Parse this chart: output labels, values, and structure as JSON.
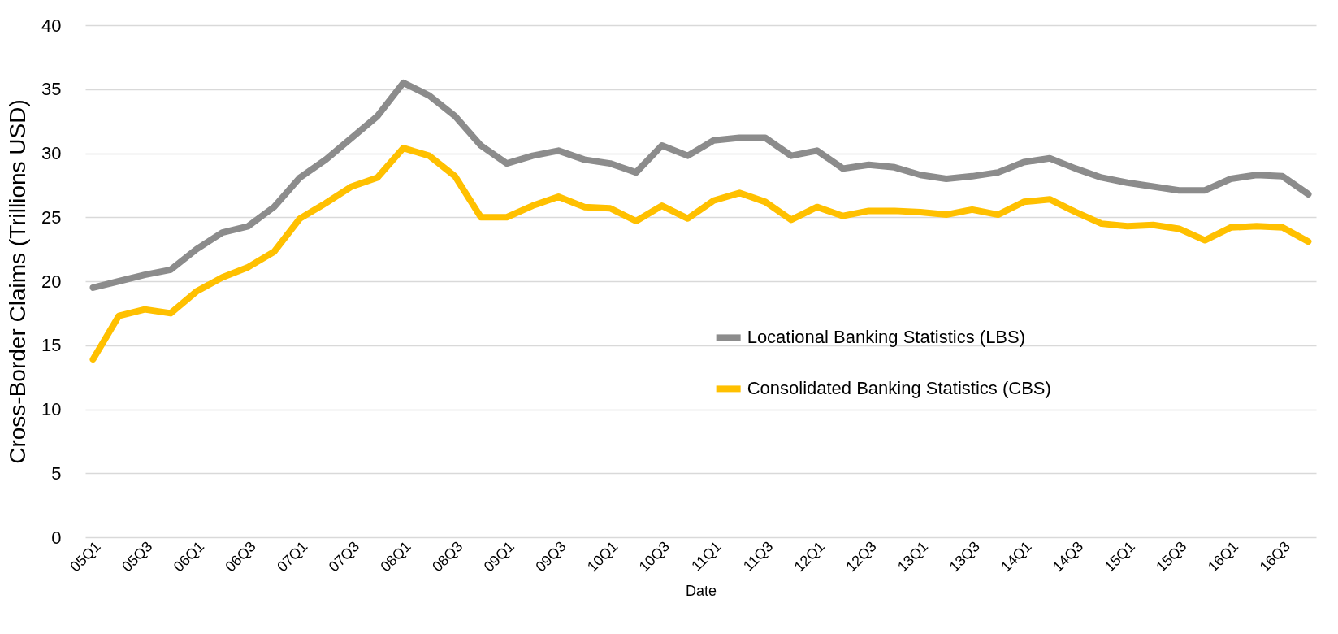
{
  "chart_data": {
    "type": "line",
    "xlabel": "Date",
    "ylabel": "Cross-Border Claims (Trillions USD)",
    "categories": [
      "05Q1",
      null,
      "05Q3",
      null,
      "06Q1",
      null,
      "06Q3",
      null,
      "07Q1",
      null,
      "07Q3",
      null,
      "08Q1",
      null,
      "08Q3",
      null,
      "09Q1",
      null,
      "09Q3",
      null,
      "10Q1",
      null,
      "10Q3",
      null,
      "11Q1",
      null,
      "11Q3",
      null,
      "12Q1",
      null,
      "12Q3",
      null,
      "13Q1",
      null,
      "13Q3",
      null,
      "14Q1",
      null,
      "14Q3",
      null,
      "15Q1",
      null,
      "15Q3",
      null,
      "16Q1",
      null,
      "16Q3",
      null
    ],
    "series": [
      {
        "name": "Locational Banking Statistics (LBS)",
        "color": "#8c8c8c",
        "values": [
          19.5,
          20.0,
          20.5,
          20.9,
          22.5,
          23.8,
          24.3,
          25.8,
          28.1,
          29.5,
          31.2,
          32.9,
          35.5,
          34.5,
          32.9,
          30.6,
          29.2,
          29.8,
          30.2,
          29.5,
          29.2,
          28.5,
          30.6,
          29.8,
          31.0,
          31.2,
          31.2,
          29.8,
          30.2,
          28.8,
          29.1,
          28.9,
          28.3,
          28.0,
          28.2,
          28.5,
          29.3,
          29.6,
          28.8,
          28.1,
          27.7,
          27.4,
          27.1,
          27.1,
          28.0,
          28.3,
          28.2,
          26.8
        ]
      },
      {
        "name": "Consolidated Banking Statistics (CBS)",
        "color": "#ffc000",
        "values": [
          13.9,
          17.3,
          17.8,
          17.5,
          19.2,
          20.3,
          21.1,
          22.3,
          24.9,
          26.1,
          27.4,
          28.1,
          30.4,
          29.8,
          28.2,
          25.0,
          25.0,
          25.9,
          26.6,
          25.8,
          25.7,
          24.7,
          25.9,
          24.9,
          26.3,
          26.9,
          26.2,
          24.8,
          25.8,
          25.1,
          25.5,
          25.5,
          25.4,
          25.2,
          25.6,
          25.2,
          26.2,
          26.4,
          25.4,
          24.5,
          24.3,
          24.4,
          24.1,
          23.2,
          24.2,
          24.3,
          24.2,
          23.1
        ]
      }
    ],
    "ylim": [
      0,
      40
    ],
    "yticks": [
      0,
      5,
      10,
      15,
      20,
      25,
      30,
      35,
      40
    ],
    "grid": "y",
    "legend": "right",
    "marker": "none",
    "line_style": "solid"
  }
}
